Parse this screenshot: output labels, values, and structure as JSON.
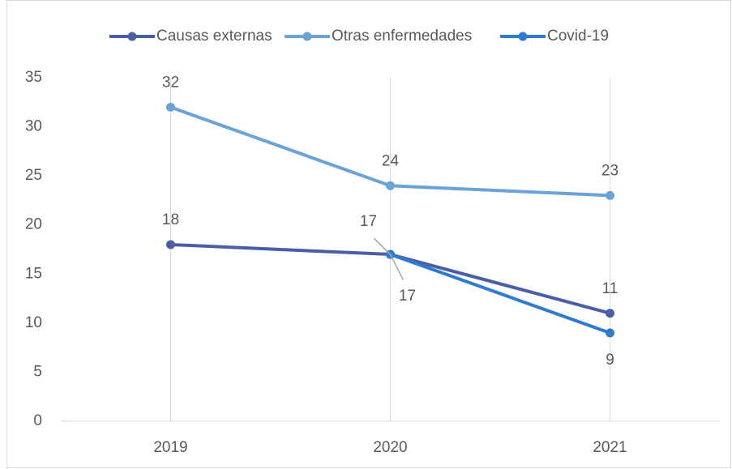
{
  "chart_data": {
    "type": "line",
    "categories": [
      "2019",
      "2020",
      "2021"
    ],
    "series": [
      {
        "name": "Causas externas",
        "color": "#4a5ea8",
        "values": [
          18,
          17,
          11
        ]
      },
      {
        "name": "Otras enfermedades",
        "color": "#6aa3d5",
        "values": [
          32,
          24,
          23
        ]
      },
      {
        "name": "Covid-19",
        "color": "#2f7bd0",
        "values": [
          null,
          17,
          9
        ]
      }
    ],
    "ylim": [
      0,
      35
    ],
    "yticks": [
      0,
      5,
      10,
      15,
      20,
      25,
      30,
      35
    ],
    "grid": "x",
    "legend": "top",
    "data_labels": true
  }
}
